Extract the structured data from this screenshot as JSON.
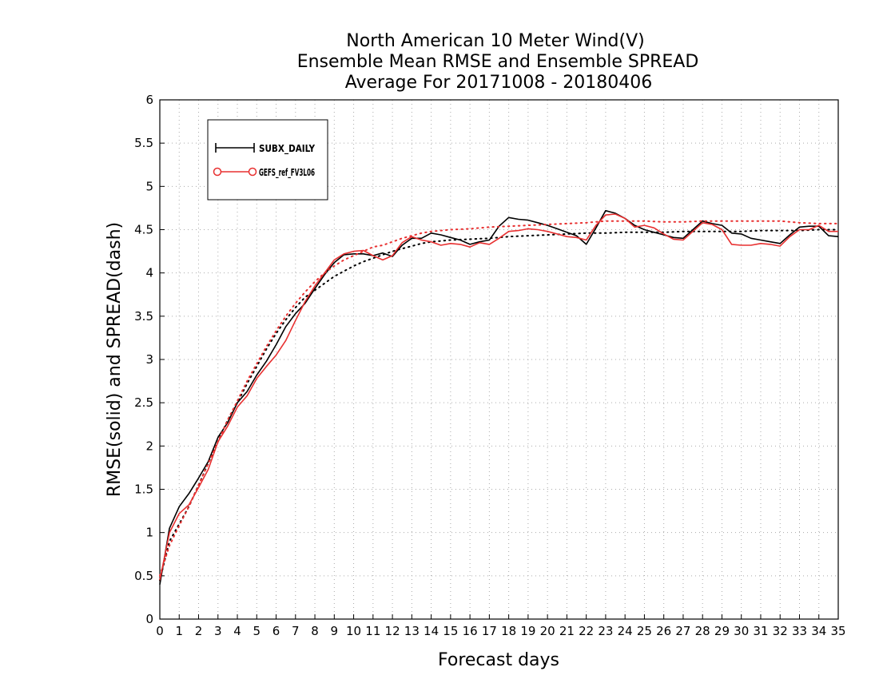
{
  "chart_data": {
    "type": "line",
    "title_lines": [
      "North American 10 Meter Wind(V)",
      "Ensemble Mean RMSE and Ensemble SPREAD",
      "Average For 20171008 - 20180406"
    ],
    "xlabel": "Forecast days",
    "ylabel": "RMSE(solid) and SPREAD(dash)",
    "xlim": [
      0,
      35
    ],
    "ylim": [
      0,
      6
    ],
    "x_ticks": [
      0,
      1,
      2,
      3,
      4,
      5,
      6,
      7,
      8,
      9,
      10,
      11,
      12,
      13,
      14,
      15,
      16,
      17,
      18,
      19,
      20,
      21,
      22,
      23,
      24,
      25,
      26,
      27,
      28,
      29,
      30,
      31,
      32,
      33,
      34,
      35
    ],
    "y_ticks": [
      0,
      0.5,
      1,
      1.5,
      2,
      2.5,
      3,
      3.5,
      4,
      4.5,
      5,
      5.5,
      6
    ],
    "y_tick_labels": [
      "0",
      "0.5",
      "1",
      "1.5",
      "2",
      "2.5",
      "3",
      "3.5",
      "4",
      "4.5",
      "5",
      "5.5",
      "6"
    ],
    "grid": true,
    "legend_position": "top-left",
    "series": [
      {
        "name": "SUBX_DAILY",
        "color": "#000000",
        "marker": "plus",
        "rmse": [
          [
            0,
            0.4
          ],
          [
            0.5,
            1.05
          ],
          [
            1,
            1.3
          ],
          [
            1.5,
            1.45
          ],
          [
            2,
            1.63
          ],
          [
            2.5,
            1.82
          ],
          [
            3,
            2.1
          ],
          [
            3.5,
            2.27
          ],
          [
            4,
            2.5
          ],
          [
            4.5,
            2.63
          ],
          [
            5,
            2.82
          ],
          [
            5.5,
            2.98
          ],
          [
            6,
            3.17
          ],
          [
            6.5,
            3.38
          ],
          [
            7,
            3.53
          ],
          [
            7.5,
            3.65
          ],
          [
            8,
            3.82
          ],
          [
            8.5,
            3.98
          ],
          [
            9,
            4.12
          ],
          [
            9.5,
            4.21
          ],
          [
            10,
            4.22
          ],
          [
            10.5,
            4.22
          ],
          [
            11,
            4.2
          ],
          [
            11.5,
            4.23
          ],
          [
            12,
            4.19
          ],
          [
            12.5,
            4.32
          ],
          [
            13,
            4.4
          ],
          [
            13.5,
            4.4
          ],
          [
            14,
            4.46
          ],
          [
            14.5,
            4.44
          ],
          [
            15,
            4.41
          ],
          [
            15.5,
            4.38
          ],
          [
            16,
            4.33
          ],
          [
            16.5,
            4.36
          ],
          [
            17,
            4.38
          ],
          [
            17.5,
            4.54
          ],
          [
            18,
            4.64
          ],
          [
            18.5,
            4.62
          ],
          [
            19,
            4.61
          ],
          [
            19.5,
            4.58
          ],
          [
            20,
            4.55
          ],
          [
            20.5,
            4.51
          ],
          [
            21,
            4.47
          ],
          [
            21.5,
            4.43
          ],
          [
            22,
            4.33
          ],
          [
            22.5,
            4.52
          ],
          [
            23,
            4.72
          ],
          [
            23.5,
            4.69
          ],
          [
            24,
            4.63
          ],
          [
            24.5,
            4.55
          ],
          [
            25,
            4.5
          ],
          [
            25.5,
            4.47
          ],
          [
            26,
            4.44
          ],
          [
            26.5,
            4.41
          ],
          [
            27,
            4.4
          ],
          [
            27.5,
            4.5
          ],
          [
            28,
            4.6
          ],
          [
            28.5,
            4.57
          ],
          [
            29,
            4.55
          ],
          [
            29.5,
            4.46
          ],
          [
            30,
            4.45
          ],
          [
            30.5,
            4.4
          ],
          [
            31,
            4.38
          ],
          [
            31.5,
            4.36
          ],
          [
            32,
            4.34
          ],
          [
            32.5,
            4.44
          ],
          [
            33,
            4.53
          ],
          [
            33.5,
            4.54
          ],
          [
            34,
            4.54
          ],
          [
            34.5,
            4.43
          ],
          [
            35,
            4.42
          ]
        ],
        "spread": [
          [
            0,
            0.45
          ],
          [
            0.5,
            0.9
          ],
          [
            1,
            1.1
          ],
          [
            1.5,
            1.3
          ],
          [
            2,
            1.55
          ],
          [
            2.5,
            1.8
          ],
          [
            3,
            2.05
          ],
          [
            3.5,
            2.3
          ],
          [
            4,
            2.5
          ],
          [
            4.5,
            2.72
          ],
          [
            5,
            2.92
          ],
          [
            5.5,
            3.12
          ],
          [
            6,
            3.3
          ],
          [
            6.5,
            3.46
          ],
          [
            7,
            3.6
          ],
          [
            7.5,
            3.72
          ],
          [
            8,
            3.8
          ],
          [
            8.5,
            3.88
          ],
          [
            9,
            3.96
          ],
          [
            9.5,
            4.02
          ],
          [
            10,
            4.08
          ],
          [
            10.5,
            4.13
          ],
          [
            11,
            4.17
          ],
          [
            11.5,
            4.21
          ],
          [
            12,
            4.25
          ],
          [
            12.5,
            4.28
          ],
          [
            13,
            4.31
          ],
          [
            13.5,
            4.34
          ],
          [
            14,
            4.36
          ],
          [
            15,
            4.38
          ],
          [
            16,
            4.39
          ],
          [
            17,
            4.4
          ],
          [
            18,
            4.42
          ],
          [
            19,
            4.43
          ],
          [
            20,
            4.44
          ],
          [
            21,
            4.45
          ],
          [
            22,
            4.46
          ],
          [
            23,
            4.46
          ],
          [
            24,
            4.47
          ],
          [
            25,
            4.47
          ],
          [
            26,
            4.47
          ],
          [
            27,
            4.48
          ],
          [
            28,
            4.48
          ],
          [
            29,
            4.48
          ],
          [
            30,
            4.48
          ],
          [
            31,
            4.49
          ],
          [
            32,
            4.49
          ],
          [
            33,
            4.49
          ],
          [
            34,
            4.5
          ],
          [
            35,
            4.5
          ]
        ]
      },
      {
        "name": "GEFS_ref_FV3L06",
        "color": "#e83030",
        "marker": "circle",
        "rmse": [
          [
            0,
            0.45
          ],
          [
            0.5,
            1.0
          ],
          [
            1,
            1.22
          ],
          [
            1.5,
            1.32
          ],
          [
            2,
            1.52
          ],
          [
            2.5,
            1.73
          ],
          [
            3,
            2.05
          ],
          [
            3.5,
            2.23
          ],
          [
            4,
            2.45
          ],
          [
            4.5,
            2.58
          ],
          [
            5,
            2.78
          ],
          [
            5.5,
            2.92
          ],
          [
            6,
            3.05
          ],
          [
            6.5,
            3.22
          ],
          [
            7,
            3.45
          ],
          [
            7.5,
            3.67
          ],
          [
            8,
            3.85
          ],
          [
            8.5,
            4.0
          ],
          [
            9,
            4.15
          ],
          [
            9.5,
            4.22
          ],
          [
            10,
            4.25
          ],
          [
            10.5,
            4.26
          ],
          [
            11,
            4.2
          ],
          [
            11.5,
            4.15
          ],
          [
            12,
            4.2
          ],
          [
            12.5,
            4.35
          ],
          [
            13,
            4.42
          ],
          [
            13.5,
            4.38
          ],
          [
            14,
            4.36
          ],
          [
            14.5,
            4.32
          ],
          [
            15,
            4.34
          ],
          [
            15.5,
            4.33
          ],
          [
            16,
            4.3
          ],
          [
            16.5,
            4.35
          ],
          [
            17,
            4.33
          ],
          [
            17.5,
            4.4
          ],
          [
            18,
            4.48
          ],
          [
            18.5,
            4.49
          ],
          [
            19,
            4.51
          ],
          [
            19.5,
            4.5
          ],
          [
            20,
            4.48
          ],
          [
            20.5,
            4.45
          ],
          [
            21,
            4.42
          ],
          [
            21.5,
            4.41
          ],
          [
            22,
            4.38
          ],
          [
            22.5,
            4.55
          ],
          [
            23,
            4.67
          ],
          [
            23.5,
            4.68
          ],
          [
            24,
            4.63
          ],
          [
            24.5,
            4.53
          ],
          [
            25,
            4.55
          ],
          [
            25.5,
            4.52
          ],
          [
            26,
            4.45
          ],
          [
            26.5,
            4.39
          ],
          [
            27,
            4.38
          ],
          [
            27.5,
            4.48
          ],
          [
            28,
            4.58
          ],
          [
            28.5,
            4.56
          ],
          [
            29,
            4.5
          ],
          [
            29.5,
            4.33
          ],
          [
            30,
            4.32
          ],
          [
            30.5,
            4.32
          ],
          [
            31,
            4.34
          ],
          [
            31.5,
            4.33
          ],
          [
            32,
            4.31
          ],
          [
            32.5,
            4.42
          ],
          [
            33,
            4.5
          ],
          [
            33.5,
            4.5
          ],
          [
            34,
            4.55
          ],
          [
            34.5,
            4.48
          ],
          [
            35,
            4.48
          ]
        ],
        "spread": [
          [
            0,
            0.5
          ],
          [
            0.5,
            0.85
          ],
          [
            1,
            1.08
          ],
          [
            1.5,
            1.3
          ],
          [
            2,
            1.55
          ],
          [
            2.5,
            1.8
          ],
          [
            3,
            2.05
          ],
          [
            3.5,
            2.3
          ],
          [
            4,
            2.52
          ],
          [
            4.5,
            2.75
          ],
          [
            5,
            2.95
          ],
          [
            5.5,
            3.15
          ],
          [
            6,
            3.33
          ],
          [
            6.5,
            3.5
          ],
          [
            7,
            3.65
          ],
          [
            7.5,
            3.78
          ],
          [
            8,
            3.9
          ],
          [
            8.5,
            4.0
          ],
          [
            9,
            4.08
          ],
          [
            9.5,
            4.15
          ],
          [
            10,
            4.2
          ],
          [
            10.5,
            4.25
          ],
          [
            11,
            4.3
          ],
          [
            11.5,
            4.32
          ],
          [
            12,
            4.36
          ],
          [
            12.5,
            4.4
          ],
          [
            13,
            4.43
          ],
          [
            13.5,
            4.46
          ],
          [
            14,
            4.48
          ],
          [
            15,
            4.5
          ],
          [
            16,
            4.51
          ],
          [
            17,
            4.53
          ],
          [
            18,
            4.54
          ],
          [
            19,
            4.55
          ],
          [
            20,
            4.56
          ],
          [
            21,
            4.57
          ],
          [
            22,
            4.58
          ],
          [
            23,
            4.6
          ],
          [
            24,
            4.6
          ],
          [
            25,
            4.6
          ],
          [
            26,
            4.59
          ],
          [
            27,
            4.59
          ],
          [
            28,
            4.6
          ],
          [
            29,
            4.6
          ],
          [
            30,
            4.6
          ],
          [
            31,
            4.6
          ],
          [
            32,
            4.6
          ],
          [
            33,
            4.58
          ],
          [
            34,
            4.57
          ],
          [
            35,
            4.57
          ]
        ]
      }
    ]
  }
}
